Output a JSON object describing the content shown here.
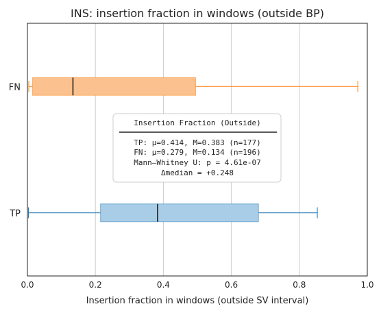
{
  "chart_data": {
    "type": "boxplot",
    "orientation": "horizontal",
    "title": "INS: insertion fraction in windows (outside BP)",
    "xlabel": "Insertion fraction in windows (outside SV interval)",
    "ylabel": "",
    "xlim": [
      0.0,
      1.0
    ],
    "x_ticks": [
      0.0,
      0.2,
      0.4,
      0.6,
      0.8,
      1.0
    ],
    "x_tick_labels": [
      "0.0",
      "0.2",
      "0.4",
      "0.6",
      "0.8",
      "1.0"
    ],
    "grid": "vertical",
    "categories": [
      "TP",
      "FN"
    ],
    "series": [
      {
        "category": "TP",
        "color": "#1f77b4",
        "fill": "#a9cde7",
        "whisker_low": 0.003,
        "q1": 0.215,
        "median": 0.383,
        "q3": 0.68,
        "whisker_high": 0.853
      },
      {
        "category": "FN",
        "color": "#ff7f0e",
        "fill": "#fbc18e",
        "whisker_low": 0.004,
        "q1": 0.015,
        "median": 0.134,
        "q3": 0.495,
        "whisker_high": 0.972
      }
    ],
    "annotation": {
      "title": "Insertion Fraction (Outside)",
      "lines": [
        "TP: μ=0.414, M=0.383 (n=177)",
        "FN: μ=0.279, M=0.134 (n=196)",
        "Mann–Whitney U: p = 4.61e-07",
        "Δmedian = +0.248"
      ]
    }
  }
}
